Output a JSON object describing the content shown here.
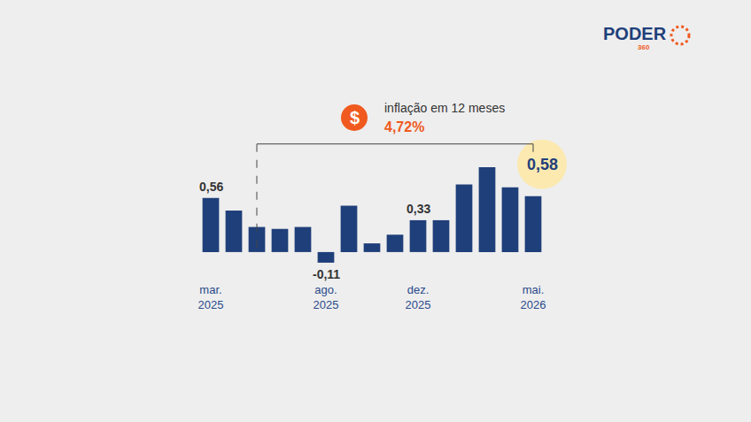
{
  "chart_data": {
    "type": "bar",
    "categories": [
      "mar. 2025",
      null,
      null,
      null,
      null,
      "ago. 2025",
      null,
      null,
      null,
      "dez. 2025",
      null,
      null,
      null,
      null,
      "mai. 2026"
    ],
    "values": [
      0.56,
      0.43,
      0.26,
      0.24,
      0.26,
      -0.11,
      0.48,
      0.09,
      0.18,
      0.33,
      0.33,
      0.7,
      0.88,
      0.67,
      0.58
    ],
    "value_labels": [
      "0,56",
      null,
      null,
      null,
      null,
      "-0,11",
      null,
      null,
      null,
      "0,33",
      null,
      null,
      null,
      null,
      "0,58"
    ],
    "data_labels": true,
    "color": "#1f3f7a",
    "ylim": [
      -0.23,
      1.42
    ],
    "tick_labels": "x",
    "grid": false,
    "annotation": {
      "icon": "$",
      "text": "inflação em 12 meses",
      "value": 4.72,
      "value_label": "4,72%"
    },
    "logo": {
      "text": "PODER",
      "sub": "360"
    }
  }
}
